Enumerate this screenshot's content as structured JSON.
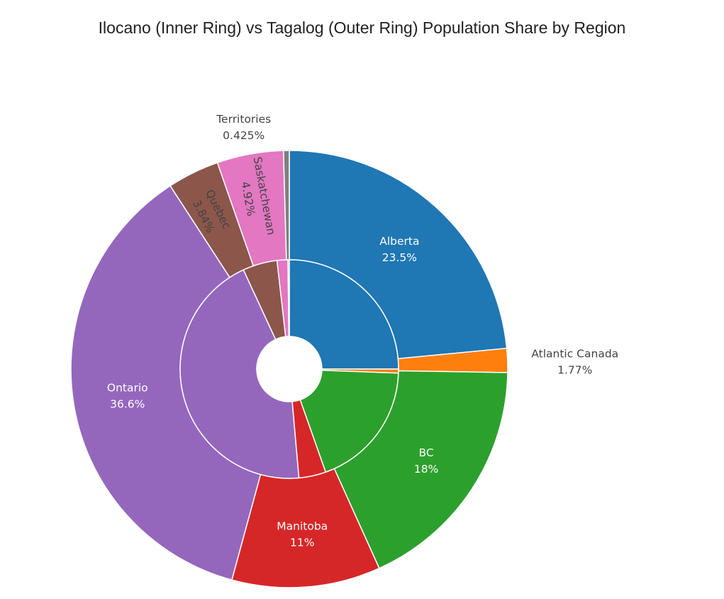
{
  "chart_data": {
    "type": "pie",
    "title": "Ilocano (Inner Ring) vs Tagalog (Outer Ring) Population Share by Region",
    "categories": [
      "Alberta",
      "Atlantic Canada",
      "BC",
      "Manitoba",
      "Ontario",
      "Quebec",
      "Saskatchewan",
      "Territories"
    ],
    "colors": [
      "#1f77b4",
      "#ff7f0e",
      "#2ca02c",
      "#d62728",
      "#9467bd",
      "#8c564b",
      "#e377c2",
      "#7f7f7f"
    ],
    "series": [
      {
        "ring": "outer",
        "values": [
          23.5,
          1.77,
          18,
          11,
          36.6,
          3.84,
          4.92,
          0.425
        ],
        "labels": [
          "23.5%",
          "1.77%",
          "18%",
          "11%",
          "36.6%",
          "3.84%",
          "4.92%",
          "0.425%"
        ]
      },
      {
        "ring": "inner",
        "values": [
          25.0,
          0.6,
          19.0,
          4.0,
          44.5,
          5.1,
          1.6,
          0.2
        ]
      }
    ],
    "direction": "clockwise",
    "start_angle_deg": 0
  }
}
